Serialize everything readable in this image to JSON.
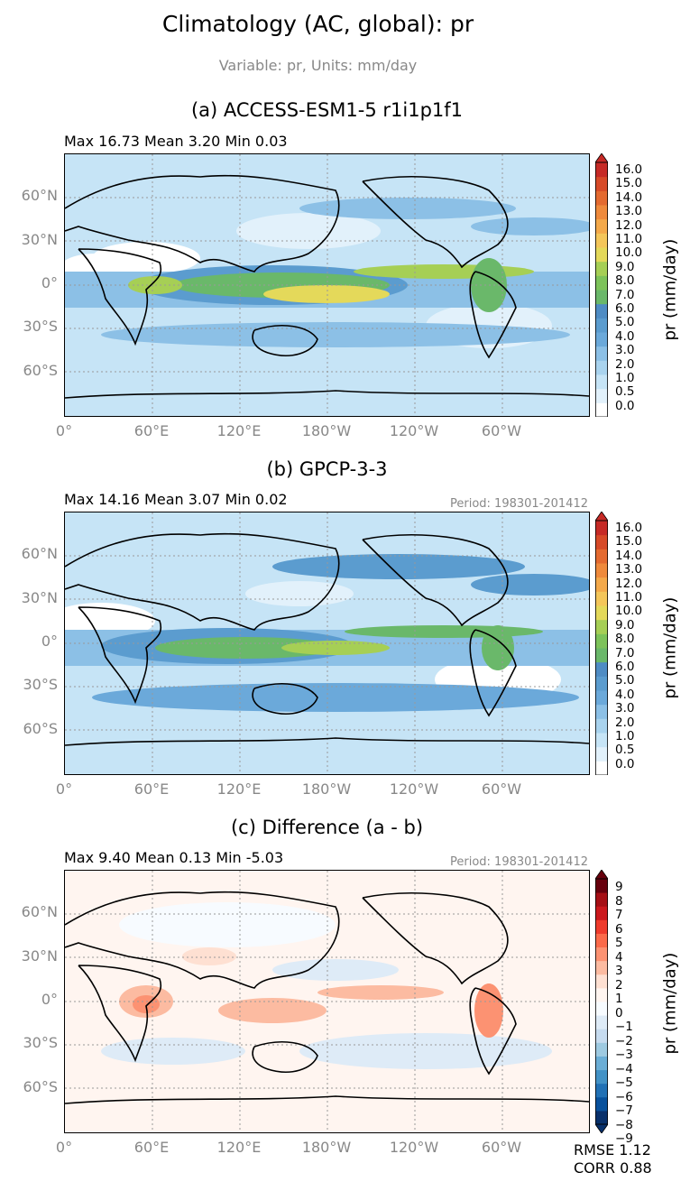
{
  "figure": {
    "title": "Climatology (AC, global): pr",
    "subtitle": "Variable: pr, Units: mm/day"
  },
  "map_axes": {
    "lat_ticks": [
      "60°N",
      "30°N",
      "0°",
      "30°S",
      "60°S"
    ],
    "lon_ticks": [
      "0°",
      "60°E",
      "120°E",
      "180°W",
      "120°W",
      "60°W"
    ],
    "gridlines": "dotted"
  },
  "panels": [
    {
      "title": "(a) ACCESS-ESM1-5 r1i1p1f1",
      "stats": "Max 16.73 Mean 3.20 Min 0.03",
      "period": "",
      "colorbar_label": "pr (mm/day)",
      "colorbar_ticks": [
        "16.0",
        "15.0",
        "14.0",
        "13.0",
        "12.0",
        "11.0",
        "10.0",
        "9.0",
        "8.0",
        "7.0",
        "6.0",
        "5.0",
        "4.0",
        "3.0",
        "2.0",
        "1.0",
        "0.5",
        "0.0"
      ],
      "colormap": "precip",
      "extend": "max"
    },
    {
      "title": "(b) GPCP-3-3",
      "stats": "Max 14.16 Mean 3.07 Min 0.02",
      "period": "Period: 198301-201412",
      "colorbar_label": "pr (mm/day)",
      "colorbar_ticks": [
        "16.0",
        "15.0",
        "14.0",
        "13.0",
        "12.0",
        "11.0",
        "10.0",
        "9.0",
        "8.0",
        "7.0",
        "6.0",
        "5.0",
        "4.0",
        "3.0",
        "2.0",
        "1.0",
        "0.5",
        "0.0"
      ],
      "colormap": "precip",
      "extend": "max"
    },
    {
      "title": "(c) Difference (a - b)",
      "stats": "Max 9.40 Mean 0.13 Min -5.03",
      "period": "Period: 198301-201412",
      "colorbar_label": "pr (mm/day)",
      "colorbar_ticks": [
        "9",
        "8",
        "7",
        "6",
        "5",
        "4",
        "3",
        "2",
        "1",
        "0",
        "−1",
        "−2",
        "−3",
        "−4",
        "−5",
        "−6",
        "−7",
        "−8",
        "−9"
      ],
      "colormap": "diverging",
      "extend": "both"
    }
  ],
  "metrics": {
    "rmse": "RMSE 1.12",
    "corr": "CORR 0.88"
  },
  "colors": {
    "precip": [
      "#ffffff",
      "#e2f1fb",
      "#c6e4f6",
      "#a9d3ee",
      "#8cc0e6",
      "#6ba9da",
      "#5b9ccf",
      "#4f8cc4",
      "#6ab86a",
      "#7dc35a",
      "#a6cf55",
      "#e4d95a",
      "#f4c65a",
      "#f4a94a",
      "#ef8a3c",
      "#e46a30",
      "#d74a28",
      "#c62a26"
    ],
    "diverging": [
      "#08306b",
      "#08519c",
      "#2171b5",
      "#4292c6",
      "#6baed6",
      "#9ecae1",
      "#c6dbef",
      "#deebf7",
      "#f7fbff",
      "#fff5f0",
      "#fee0d2",
      "#fcbba1",
      "#fc9272",
      "#fb6a4a",
      "#ef3b2c",
      "#cb181d",
      "#a50f15",
      "#67000d"
    ],
    "land_outline": "#000000",
    "tick_text": "#888888"
  }
}
